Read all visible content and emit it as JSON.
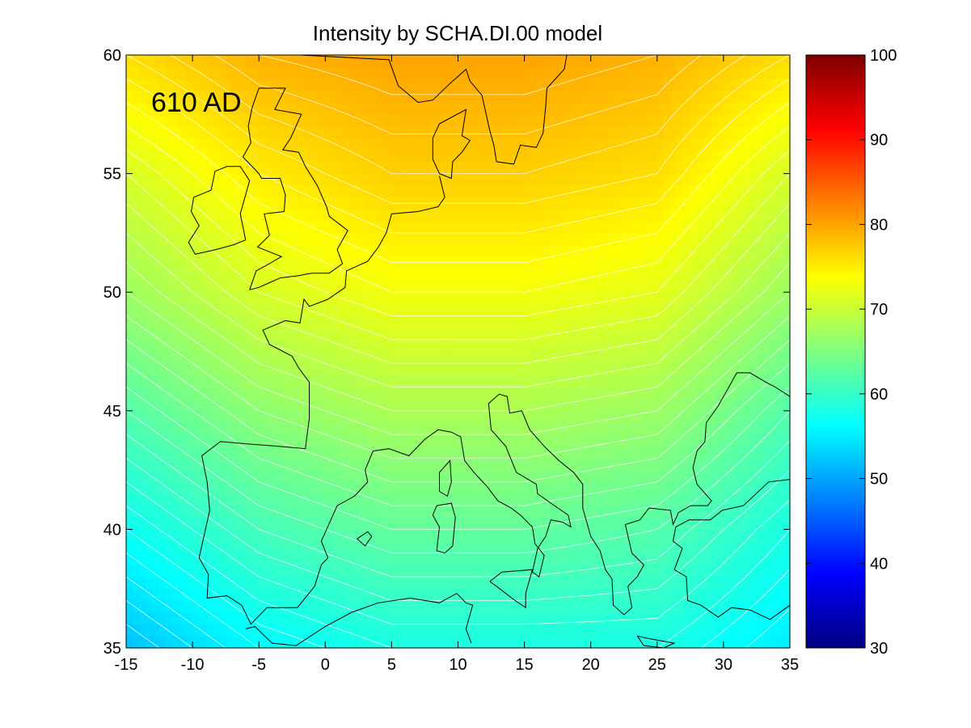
{
  "chart_data": {
    "type": "heatmap",
    "title": "Intensity by SCHA.DI.00 model",
    "annotation": "610 AD",
    "xlabel": "",
    "ylabel": "",
    "xlim": [
      -15,
      35
    ],
    "ylim": [
      35,
      60
    ],
    "x_ticks": [
      -15,
      -10,
      -5,
      0,
      5,
      10,
      15,
      20,
      25,
      30,
      35
    ],
    "y_ticks": [
      35,
      40,
      45,
      50,
      55,
      60
    ],
    "colorbar": {
      "colormap": "jet",
      "range": [
        30,
        100
      ],
      "ticks": [
        30,
        40,
        50,
        60,
        70,
        80,
        90,
        100
      ]
    },
    "contour_interval": 1,
    "contour_color": "#ffffff",
    "coastline_color": "#000000",
    "grid": false,
    "x": [
      -15,
      -5,
      5,
      15,
      25,
      35
    ],
    "y": [
      35,
      40,
      45,
      50,
      55,
      60
    ],
    "z": [
      [
        52,
        56,
        58,
        58,
        58,
        55
      ],
      [
        57,
        61,
        63,
        63,
        62,
        58
      ],
      [
        62,
        66,
        68,
        68,
        67,
        62
      ],
      [
        67,
        71,
        73,
        73,
        72,
        67
      ],
      [
        71,
        75,
        77,
        77,
        76,
        71
      ],
      [
        76,
        79,
        80,
        80,
        79,
        76
      ]
    ]
  }
}
